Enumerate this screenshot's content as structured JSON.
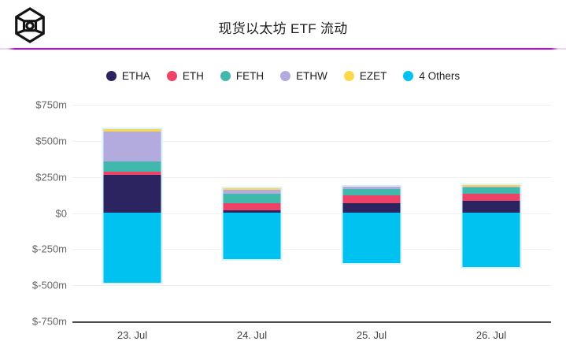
{
  "header": {
    "title": "现货以太坊 ETF 流动",
    "logo": "wireframe-cube-logo",
    "divider_color": "#bf06dd"
  },
  "chart_data": {
    "type": "bar",
    "stacked": true,
    "title": "现货以太坊 ETF 流动",
    "categories": [
      "23. Jul",
      "24. Jul",
      "25. Jul",
      "26. Jul"
    ],
    "series": [
      {
        "name": "ETHA",
        "color": "#2b2460",
        "values": [
          266,
          18,
          70,
          85
        ]
      },
      {
        "name": "ETH",
        "color": "#ee4266",
        "values": [
          18,
          50,
          55,
          47
        ]
      },
      {
        "name": "FETH",
        "color": "#40b8ac",
        "values": [
          72,
          68,
          40,
          44
        ]
      },
      {
        "name": "ETHW",
        "color": "#b3aade",
        "values": [
          208,
          25,
          17,
          8
        ]
      },
      {
        "name": "EZET",
        "color": "#fbd84e",
        "values": [
          16,
          12,
          0,
          10
        ]
      },
      {
        "name": "4 Others",
        "color": "#00c2f0",
        "values": [
          -484,
          -317,
          -344,
          -373
        ]
      }
    ],
    "ylabel": "",
    "xlabel": "",
    "ylim": [
      -750,
      750
    ],
    "y_ticks": [
      "$750m",
      "$500m",
      "$250m",
      "$0",
      "$-250m",
      "$-500m",
      "$-750m"
    ],
    "grid": true,
    "legend_position": "top",
    "unit": "$m"
  }
}
